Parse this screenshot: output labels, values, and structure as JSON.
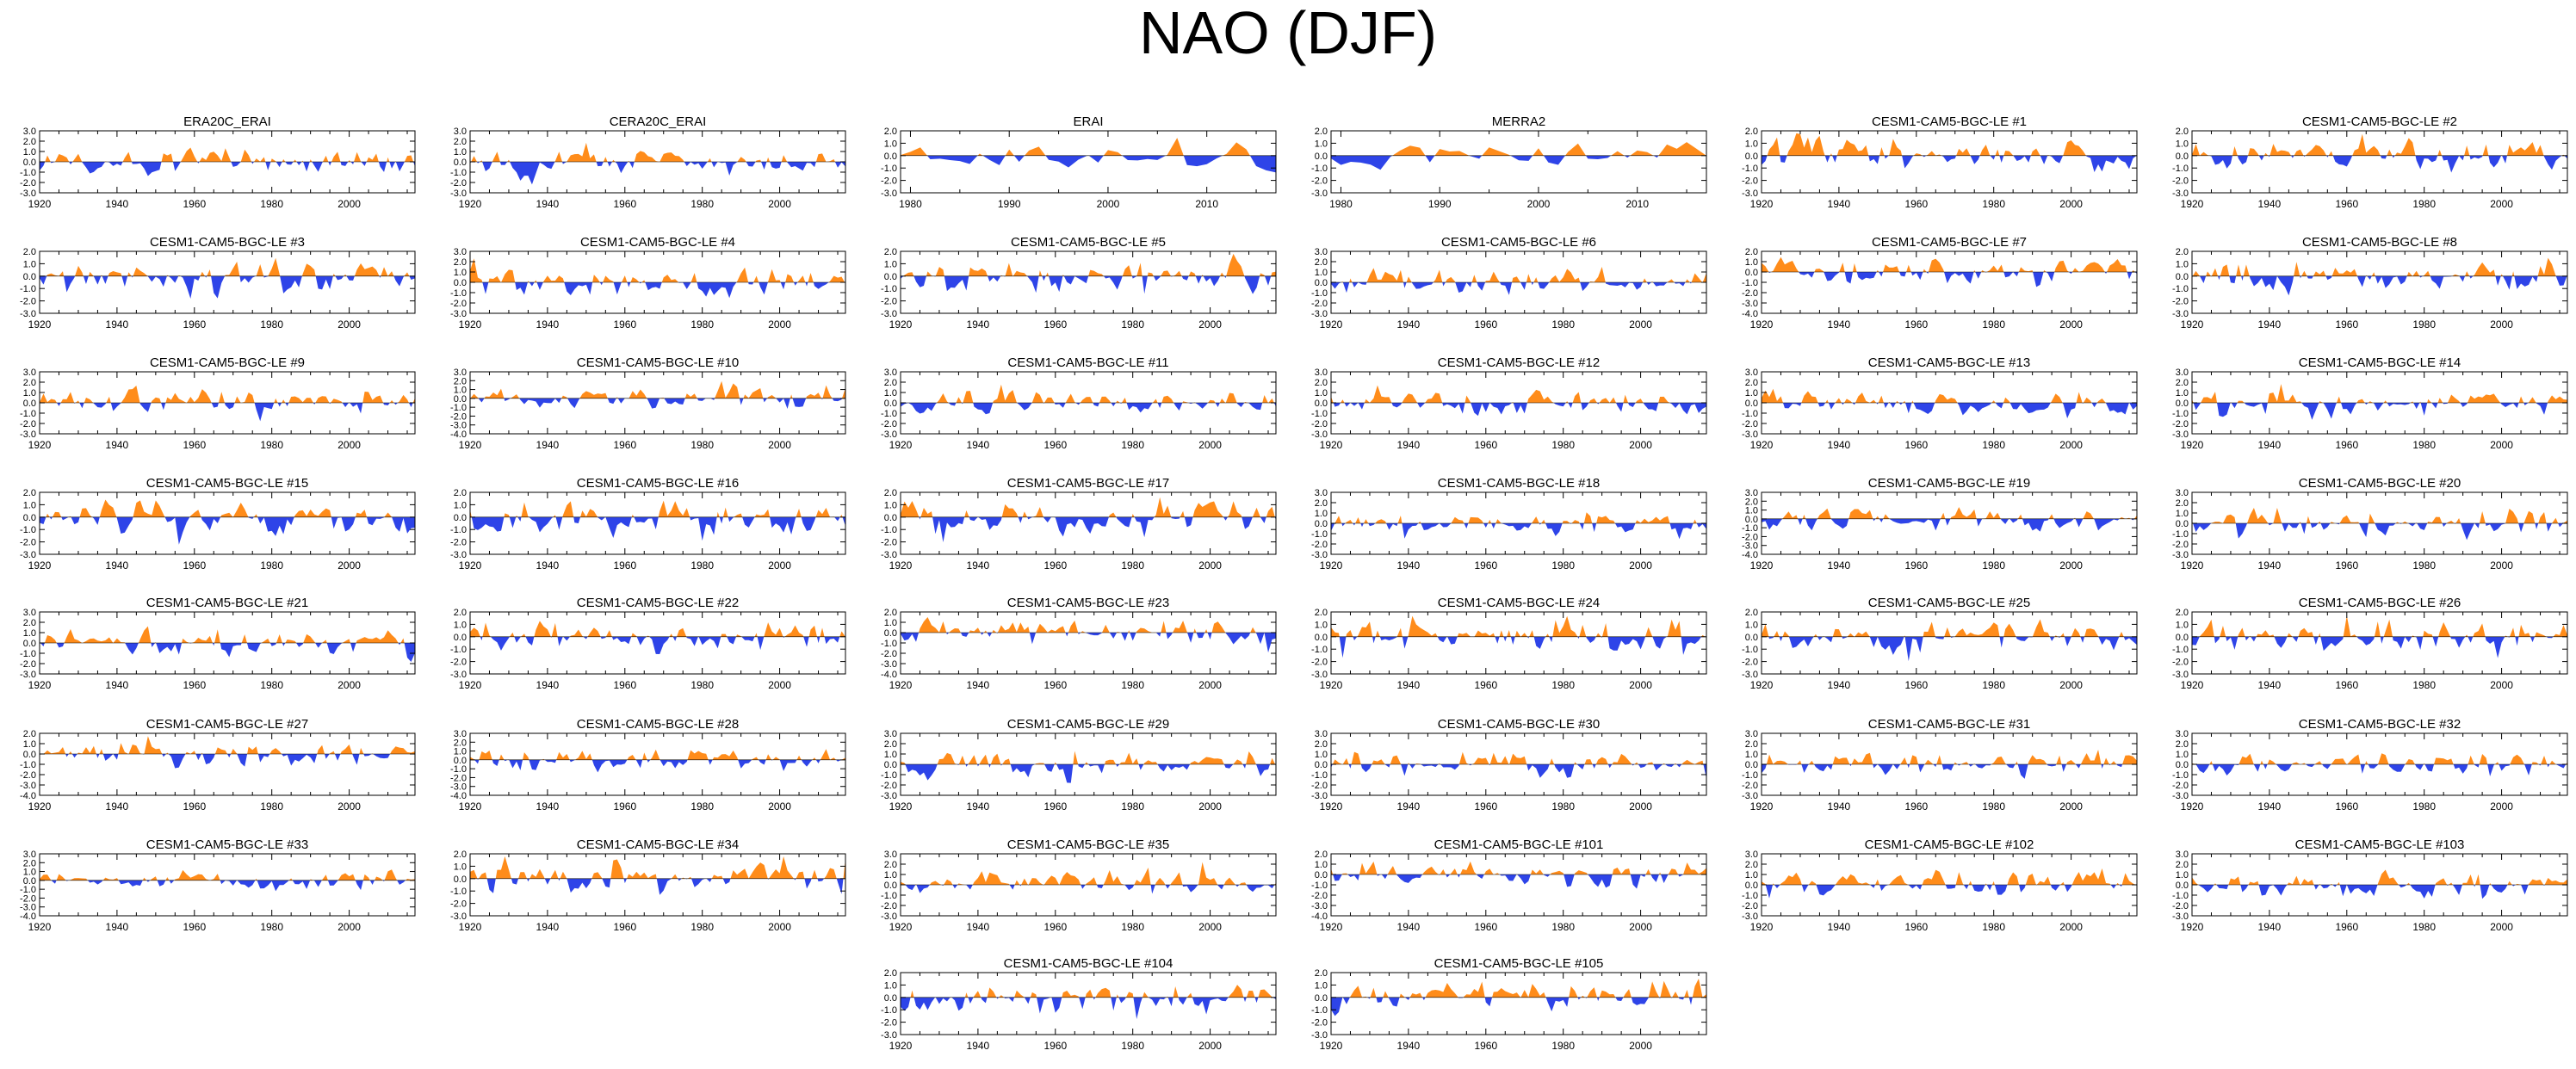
{
  "page": {
    "title": "NAO (DJF)"
  },
  "colors": {
    "positive": "#ff8c1a",
    "negative": "#2e44e8",
    "axis": "#000000"
  },
  "chart_data": [
    {
      "type": "area",
      "title": "ERA20C_ERAI",
      "x_start": 1920,
      "x_end": 2017,
      "xticks": [
        1920,
        1940,
        1960,
        1980,
        2000
      ],
      "ylim": [
        -3,
        3
      ],
      "yticks": [
        "3.0",
        "2.0",
        "1.0",
        "0.0",
        "-1.0",
        "-2.0",
        "-3.0"
      ],
      "seed": 1
    },
    {
      "type": "area",
      "title": "CERA20C_ERAI",
      "x_start": 1920,
      "x_end": 2017,
      "xticks": [
        1920,
        1940,
        1960,
        1980,
        2000
      ],
      "ylim": [
        -3,
        3
      ],
      "yticks": [
        "3.0",
        "2.0",
        "1.0",
        "0.0",
        "-1.0",
        "-2.0",
        "-3.0"
      ],
      "seed": 2
    },
    {
      "type": "area",
      "title": "ERAI",
      "x_start": 1979,
      "x_end": 2017,
      "xticks": [
        1980,
        1990,
        2000,
        2010
      ],
      "ylim": [
        -3,
        2
      ],
      "yticks": [
        "2.0",
        "1.0",
        "0.0",
        "-1.0",
        "-2.0",
        "-3.0"
      ],
      "seed": 3
    },
    {
      "type": "area",
      "title": "MERRA2",
      "x_start": 1979,
      "x_end": 2017,
      "xticks": [
        1980,
        1990,
        2000,
        2010
      ],
      "ylim": [
        -3,
        2
      ],
      "yticks": [
        "2.0",
        "1.0",
        "0.0",
        "-1.0",
        "-2.0",
        "-3.0"
      ],
      "seed": 4
    },
    {
      "type": "area",
      "title": "CESM1-CAM5-BGC-LE #1",
      "x_start": 1920,
      "x_end": 2017,
      "xticks": [
        1920,
        1940,
        1960,
        1980,
        2000
      ],
      "ylim": [
        -3,
        2
      ],
      "yticks": [
        "2.0",
        "1.0",
        "0.0",
        "-1.0",
        "-2.0",
        "-3.0"
      ],
      "seed": 5
    },
    {
      "type": "area",
      "title": "CESM1-CAM5-BGC-LE #2",
      "x_start": 1920,
      "x_end": 2017,
      "xticks": [
        1920,
        1940,
        1960,
        1980,
        2000
      ],
      "ylim": [
        -3,
        2
      ],
      "yticks": [
        "2.0",
        "1.0",
        "0.0",
        "-1.0",
        "-2.0",
        "-3.0"
      ],
      "seed": 6
    },
    {
      "type": "area",
      "title": "CESM1-CAM5-BGC-LE #3",
      "x_start": 1920,
      "x_end": 2017,
      "xticks": [
        1920,
        1940,
        1960,
        1980,
        2000
      ],
      "ylim": [
        -3,
        2
      ],
      "yticks": [
        "2.0",
        "1.0",
        "0.0",
        "-1.0",
        "-2.0",
        "-3.0"
      ],
      "seed": 7
    },
    {
      "type": "area",
      "title": "CESM1-CAM5-BGC-LE #4",
      "x_start": 1920,
      "x_end": 2017,
      "xticks": [
        1920,
        1940,
        1960,
        1980,
        2000
      ],
      "ylim": [
        -3,
        3
      ],
      "yticks": [
        "3.0",
        "2.0",
        "1.0",
        "0.0",
        "-1.0",
        "-2.0",
        "-3.0"
      ],
      "seed": 8
    },
    {
      "type": "area",
      "title": "CESM1-CAM5-BGC-LE #5",
      "x_start": 1920,
      "x_end": 2017,
      "xticks": [
        1920,
        1940,
        1960,
        1980,
        2000
      ],
      "ylim": [
        -3,
        2
      ],
      "yticks": [
        "2.0",
        "1.0",
        "0.0",
        "-1.0",
        "-2.0",
        "-3.0"
      ],
      "seed": 9
    },
    {
      "type": "area",
      "title": "CESM1-CAM5-BGC-LE #6",
      "x_start": 1920,
      "x_end": 2017,
      "xticks": [
        1920,
        1940,
        1960,
        1980,
        2000
      ],
      "ylim": [
        -3,
        3
      ],
      "yticks": [
        "3.0",
        "2.0",
        "1.0",
        "0.0",
        "-1.0",
        "-2.0",
        "-3.0"
      ],
      "seed": 10
    },
    {
      "type": "area",
      "title": "CESM1-CAM5-BGC-LE #7",
      "x_start": 1920,
      "x_end": 2017,
      "xticks": [
        1920,
        1940,
        1960,
        1980,
        2000
      ],
      "ylim": [
        -4,
        2
      ],
      "yticks": [
        "2.0",
        "1.0",
        "0.0",
        "-1.0",
        "-2.0",
        "-3.0",
        "-4.0"
      ],
      "seed": 11
    },
    {
      "type": "area",
      "title": "CESM1-CAM5-BGC-LE #8",
      "x_start": 1920,
      "x_end": 2017,
      "xticks": [
        1920,
        1940,
        1960,
        1980,
        2000
      ],
      "ylim": [
        -3,
        2
      ],
      "yticks": [
        "2.0",
        "1.0",
        "0.0",
        "-1.0",
        "-2.0",
        "-3.0"
      ],
      "seed": 12
    },
    {
      "type": "area",
      "title": "CESM1-CAM5-BGC-LE #9",
      "x_start": 1920,
      "x_end": 2017,
      "xticks": [
        1920,
        1940,
        1960,
        1980,
        2000
      ],
      "ylim": [
        -3,
        3
      ],
      "yticks": [
        "3.0",
        "2.0",
        "1.0",
        "0.0",
        "-1.0",
        "-2.0",
        "-3.0"
      ],
      "seed": 13
    },
    {
      "type": "area",
      "title": "CESM1-CAM5-BGC-LE #10",
      "x_start": 1920,
      "x_end": 2017,
      "xticks": [
        1920,
        1940,
        1960,
        1980,
        2000
      ],
      "ylim": [
        -4,
        3
      ],
      "yticks": [
        "3.0",
        "2.0",
        "1.0",
        "0.0",
        "-1.0",
        "-2.0",
        "-3.0",
        "-4.0"
      ],
      "seed": 14
    },
    {
      "type": "area",
      "title": "CESM1-CAM5-BGC-LE #11",
      "x_start": 1920,
      "x_end": 2017,
      "xticks": [
        1920,
        1940,
        1960,
        1980,
        2000
      ],
      "ylim": [
        -3,
        3
      ],
      "yticks": [
        "3.0",
        "2.0",
        "1.0",
        "0.0",
        "-1.0",
        "-2.0",
        "-3.0"
      ],
      "seed": 15
    },
    {
      "type": "area",
      "title": "CESM1-CAM5-BGC-LE #12",
      "x_start": 1920,
      "x_end": 2017,
      "xticks": [
        1920,
        1940,
        1960,
        1980,
        2000
      ],
      "ylim": [
        -3,
        3
      ],
      "yticks": [
        "3.0",
        "2.0",
        "1.0",
        "0.0",
        "-1.0",
        "-2.0",
        "-3.0"
      ],
      "seed": 16
    },
    {
      "type": "area",
      "title": "CESM1-CAM5-BGC-LE #13",
      "x_start": 1920,
      "x_end": 2017,
      "xticks": [
        1920,
        1940,
        1960,
        1980,
        2000
      ],
      "ylim": [
        -3,
        3
      ],
      "yticks": [
        "3.0",
        "2.0",
        "1.0",
        "0.0",
        "-1.0",
        "-2.0",
        "-3.0"
      ],
      "seed": 17
    },
    {
      "type": "area",
      "title": "CESM1-CAM5-BGC-LE #14",
      "x_start": 1920,
      "x_end": 2017,
      "xticks": [
        1920,
        1940,
        1960,
        1980,
        2000
      ],
      "ylim": [
        -3,
        3
      ],
      "yticks": [
        "3.0",
        "2.0",
        "1.0",
        "0.0",
        "-1.0",
        "-2.0",
        "-3.0"
      ],
      "seed": 18
    },
    {
      "type": "area",
      "title": "CESM1-CAM5-BGC-LE #15",
      "x_start": 1920,
      "x_end": 2017,
      "xticks": [
        1920,
        1940,
        1960,
        1980,
        2000
      ],
      "ylim": [
        -3,
        2
      ],
      "yticks": [
        "2.0",
        "1.0",
        "0.0",
        "-1.0",
        "-2.0",
        "-3.0"
      ],
      "seed": 19
    },
    {
      "type": "area",
      "title": "CESM1-CAM5-BGC-LE #16",
      "x_start": 1920,
      "x_end": 2017,
      "xticks": [
        1920,
        1940,
        1960,
        1980,
        2000
      ],
      "ylim": [
        -3,
        2
      ],
      "yticks": [
        "2.0",
        "1.0",
        "0.0",
        "-1.0",
        "-2.0",
        "-3.0"
      ],
      "seed": 20
    },
    {
      "type": "area",
      "title": "CESM1-CAM5-BGC-LE #17",
      "x_start": 1920,
      "x_end": 2017,
      "xticks": [
        1920,
        1940,
        1960,
        1980,
        2000
      ],
      "ylim": [
        -3,
        2
      ],
      "yticks": [
        "2.0",
        "1.0",
        "0.0",
        "-1.0",
        "-2.0",
        "-3.0"
      ],
      "seed": 21
    },
    {
      "type": "area",
      "title": "CESM1-CAM5-BGC-LE #18",
      "x_start": 1920,
      "x_end": 2017,
      "xticks": [
        1920,
        1940,
        1960,
        1980,
        2000
      ],
      "ylim": [
        -3,
        3
      ],
      "yticks": [
        "3.0",
        "2.0",
        "1.0",
        "0.0",
        "-1.0",
        "-2.0",
        "-3.0"
      ],
      "seed": 22
    },
    {
      "type": "area",
      "title": "CESM1-CAM5-BGC-LE #19",
      "x_start": 1920,
      "x_end": 2017,
      "xticks": [
        1920,
        1940,
        1960,
        1980,
        2000
      ],
      "ylim": [
        -4,
        3
      ],
      "yticks": [
        "3.0",
        "2.0",
        "1.0",
        "0.0",
        "-1.0",
        "-2.0",
        "-3.0",
        "-4.0"
      ],
      "seed": 23
    },
    {
      "type": "area",
      "title": "CESM1-CAM5-BGC-LE #20",
      "x_start": 1920,
      "x_end": 2017,
      "xticks": [
        1920,
        1940,
        1960,
        1980,
        2000
      ],
      "ylim": [
        -3,
        3
      ],
      "yticks": [
        "3.0",
        "2.0",
        "1.0",
        "0.0",
        "-1.0",
        "-2.0",
        "-3.0"
      ],
      "seed": 24
    },
    {
      "type": "area",
      "title": "CESM1-CAM5-BGC-LE #21",
      "x_start": 1920,
      "x_end": 2017,
      "xticks": [
        1920,
        1940,
        1960,
        1980,
        2000
      ],
      "ylim": [
        -3,
        3
      ],
      "yticks": [
        "3.0",
        "2.0",
        "1.0",
        "0.0",
        "-1.0",
        "-2.0",
        "-3.0"
      ],
      "seed": 25
    },
    {
      "type": "area",
      "title": "CESM1-CAM5-BGC-LE #22",
      "x_start": 1920,
      "x_end": 2017,
      "xticks": [
        1920,
        1940,
        1960,
        1980,
        2000
      ],
      "ylim": [
        -3,
        2
      ],
      "yticks": [
        "2.0",
        "1.0",
        "0.0",
        "-1.0",
        "-2.0",
        "-3.0"
      ],
      "seed": 26
    },
    {
      "type": "area",
      "title": "CESM1-CAM5-BGC-LE #23",
      "x_start": 1920,
      "x_end": 2017,
      "xticks": [
        1920,
        1940,
        1960,
        1980,
        2000
      ],
      "ylim": [
        -4,
        2
      ],
      "yticks": [
        "2.0",
        "1.0",
        "0.0",
        "-1.0",
        "-2.0",
        "-3.0",
        "-4.0"
      ],
      "seed": 27
    },
    {
      "type": "area",
      "title": "CESM1-CAM5-BGC-LE #24",
      "x_start": 1920,
      "x_end": 2017,
      "xticks": [
        1920,
        1940,
        1960,
        1980,
        2000
      ],
      "ylim": [
        -3,
        2
      ],
      "yticks": [
        "2.0",
        "1.0",
        "0.0",
        "-1.0",
        "-2.0",
        "-3.0"
      ],
      "seed": 28
    },
    {
      "type": "area",
      "title": "CESM1-CAM5-BGC-LE #25",
      "x_start": 1920,
      "x_end": 2017,
      "xticks": [
        1920,
        1940,
        1960,
        1980,
        2000
      ],
      "ylim": [
        -3,
        2
      ],
      "yticks": [
        "2.0",
        "1.0",
        "0.0",
        "-1.0",
        "-2.0",
        "-3.0"
      ],
      "seed": 29
    },
    {
      "type": "area",
      "title": "CESM1-CAM5-BGC-LE #26",
      "x_start": 1920,
      "x_end": 2017,
      "xticks": [
        1920,
        1940,
        1960,
        1980,
        2000
      ],
      "ylim": [
        -3,
        2
      ],
      "yticks": [
        "2.0",
        "1.0",
        "0.0",
        "-1.0",
        "-2.0",
        "-3.0"
      ],
      "seed": 30
    },
    {
      "type": "area",
      "title": "CESM1-CAM5-BGC-LE #27",
      "x_start": 1920,
      "x_end": 2017,
      "xticks": [
        1920,
        1940,
        1960,
        1980,
        2000
      ],
      "ylim": [
        -4,
        2
      ],
      "yticks": [
        "2.0",
        "1.0",
        "0.0",
        "-1.0",
        "-2.0",
        "-3.0",
        "-4.0"
      ],
      "seed": 31
    },
    {
      "type": "area",
      "title": "CESM1-CAM5-BGC-LE #28",
      "x_start": 1920,
      "x_end": 2017,
      "xticks": [
        1920,
        1940,
        1960,
        1980,
        2000
      ],
      "ylim": [
        -4,
        3
      ],
      "yticks": [
        "3.0",
        "2.0",
        "1.0",
        "0.0",
        "-1.0",
        "-2.0",
        "-3.0",
        "-4.0"
      ],
      "seed": 32
    },
    {
      "type": "area",
      "title": "CESM1-CAM5-BGC-LE #29",
      "x_start": 1920,
      "x_end": 2017,
      "xticks": [
        1920,
        1940,
        1960,
        1980,
        2000
      ],
      "ylim": [
        -3,
        3
      ],
      "yticks": [
        "3.0",
        "2.0",
        "1.0",
        "0.0",
        "-1.0",
        "-2.0",
        "-3.0"
      ],
      "seed": 33
    },
    {
      "type": "area",
      "title": "CESM1-CAM5-BGC-LE #30",
      "x_start": 1920,
      "x_end": 2017,
      "xticks": [
        1920,
        1940,
        1960,
        1980,
        2000
      ],
      "ylim": [
        -3,
        3
      ],
      "yticks": [
        "3.0",
        "2.0",
        "1.0",
        "0.0",
        "-1.0",
        "-2.0",
        "-3.0"
      ],
      "seed": 34
    },
    {
      "type": "area",
      "title": "CESM1-CAM5-BGC-LE #31",
      "x_start": 1920,
      "x_end": 2017,
      "xticks": [
        1920,
        1940,
        1960,
        1980,
        2000
      ],
      "ylim": [
        -3,
        3
      ],
      "yticks": [
        "3.0",
        "2.0",
        "1.0",
        "0.0",
        "-1.0",
        "-2.0",
        "-3.0"
      ],
      "seed": 35
    },
    {
      "type": "area",
      "title": "CESM1-CAM5-BGC-LE #32",
      "x_start": 1920,
      "x_end": 2017,
      "xticks": [
        1920,
        1940,
        1960,
        1980,
        2000
      ],
      "ylim": [
        -3,
        3
      ],
      "yticks": [
        "3.0",
        "2.0",
        "1.0",
        "0.0",
        "-1.0",
        "-2.0",
        "-3.0"
      ],
      "seed": 36
    },
    {
      "type": "area",
      "title": "CESM1-CAM5-BGC-LE #33",
      "x_start": 1920,
      "x_end": 2017,
      "xticks": [
        1920,
        1940,
        1960,
        1980,
        2000
      ],
      "ylim": [
        -4,
        3
      ],
      "yticks": [
        "3.0",
        "2.0",
        "1.0",
        "0.0",
        "-1.0",
        "-2.0",
        "-3.0",
        "-4.0"
      ],
      "seed": 37
    },
    {
      "type": "area",
      "title": "CESM1-CAM5-BGC-LE #34",
      "x_start": 1920,
      "x_end": 2017,
      "xticks": [
        1920,
        1940,
        1960,
        1980,
        2000
      ],
      "ylim": [
        -3,
        2
      ],
      "yticks": [
        "2.0",
        "1.0",
        "0.0",
        "-1.0",
        "-2.0",
        "-3.0"
      ],
      "seed": 38
    },
    {
      "type": "area",
      "title": "CESM1-CAM5-BGC-LE #35",
      "x_start": 1920,
      "x_end": 2017,
      "xticks": [
        1920,
        1940,
        1960,
        1980,
        2000
      ],
      "ylim": [
        -3,
        3
      ],
      "yticks": [
        "3.0",
        "2.0",
        "1.0",
        "0.0",
        "-1.0",
        "-2.0",
        "-3.0"
      ],
      "seed": 39
    },
    {
      "type": "area",
      "title": "CESM1-CAM5-BGC-LE #101",
      "x_start": 1920,
      "x_end": 2017,
      "xticks": [
        1920,
        1940,
        1960,
        1980,
        2000
      ],
      "ylim": [
        -4,
        2
      ],
      "yticks": [
        "2.0",
        "1.0",
        "0.0",
        "-1.0",
        "-2.0",
        "-3.0",
        "-4.0"
      ],
      "seed": 40
    },
    {
      "type": "area",
      "title": "CESM1-CAM5-BGC-LE #102",
      "x_start": 1920,
      "x_end": 2017,
      "xticks": [
        1920,
        1940,
        1960,
        1980,
        2000
      ],
      "ylim": [
        -3,
        3
      ],
      "yticks": [
        "3.0",
        "2.0",
        "1.0",
        "0.0",
        "-1.0",
        "-2.0",
        "-3.0"
      ],
      "seed": 41
    },
    {
      "type": "area",
      "title": "CESM1-CAM5-BGC-LE #103",
      "x_start": 1920,
      "x_end": 2017,
      "xticks": [
        1920,
        1940,
        1960,
        1980,
        2000
      ],
      "ylim": [
        -3,
        3
      ],
      "yticks": [
        "3.0",
        "2.0",
        "1.0",
        "0.0",
        "-1.0",
        "-2.0",
        "-3.0"
      ],
      "seed": 42
    },
    {
      "type": "area",
      "title": "CESM1-CAM5-BGC-LE #104",
      "x_start": 1920,
      "x_end": 2017,
      "xticks": [
        1920,
        1940,
        1960,
        1980,
        2000
      ],
      "ylim": [
        -3,
        2
      ],
      "yticks": [
        "2.0",
        "1.0",
        "0.0",
        "-1.0",
        "-2.0",
        "-3.0"
      ],
      "seed": 43
    },
    {
      "type": "area",
      "title": "CESM1-CAM5-BGC-LE #105",
      "x_start": 1920,
      "x_end": 2017,
      "xticks": [
        1920,
        1940,
        1960,
        1980,
        2000
      ],
      "ylim": [
        -3,
        2
      ],
      "yticks": [
        "2.0",
        "1.0",
        "0.0",
        "-1.0",
        "-2.0",
        "-3.0"
      ],
      "seed": 44
    }
  ]
}
